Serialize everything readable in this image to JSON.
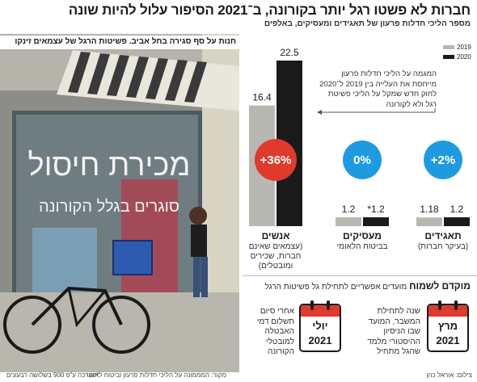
{
  "header": {
    "title": "חברות לא פשטו רגל יותר בקורונה, ב־2021 הסיפור עלול להיות שונה",
    "subtitle": "מספר הליכי חדלות פרעון של תאגידים ומעסיקים, באלפים"
  },
  "photo": {
    "caption": "חנות על סף סגירה בחל אביב. פשיטות הרגל של עצמאים זינקו",
    "sign_line1": "מכירת חיסול",
    "sign_line2": "סוגרים בגלל הקורונה"
  },
  "legend": [
    {
      "label": "2019",
      "color": "#b8b8b2"
    },
    {
      "label": "2020",
      "color": "#1a1a1a"
    }
  ],
  "annotation": "המגמה על הליכי חדלות פרעון מייחסת את העלייה בין 2019 ל־2020 לחוק חדש שמקל על הליכי פשיטת רגל ולא לקורונה",
  "chart_data": {
    "type": "bar",
    "title": "מספר הליכי חדלות פרעון של תאגידים ומעסיקים, באלפים",
    "categories": [
      "תאגידים",
      "מעסיקים",
      "אנשים"
    ],
    "category_descriptions": [
      "(בעיקר חברות)",
      "בביטוח הלאומי",
      "(עצמאים שאינם חברות, שכירים ומובטלים)"
    ],
    "series": [
      {
        "name": "2019",
        "values": [
          1.18,
          1.2,
          16.4
        ],
        "labels": [
          "1.18",
          "1.2",
          "16.4"
        ],
        "color": "#b8b8b2"
      },
      {
        "name": "2020",
        "values": [
          1.2,
          1.2,
          22.5
        ],
        "labels": [
          "1.2",
          "*1.2",
          "22.5"
        ],
        "color": "#1a1a1a"
      }
    ],
    "changes": [
      "+2%",
      "0%",
      "+36%"
    ],
    "change_colors": [
      "#1e9be0",
      "#1e9be0",
      "#e03a2c"
    ],
    "ylim": [
      0,
      22.5
    ]
  },
  "focus": {
    "title_bold": "מוקדם לשמוח",
    "title_rest": "מועדים אפשריים לתחילת גל פשיטות הרגל",
    "events": [
      {
        "month": "מרץ",
        "year": "2021",
        "description": "שנה לתחילת המשבר, המועד שבו הניסיון ההיסטורי מלמד שהגל מתחיל"
      },
      {
        "month": "יולי",
        "year": "2021",
        "description": "אחרי סיום תשלום דמי האבטלה למובטלי הקורונה"
      }
    ]
  },
  "footer": {
    "note": "*הערכה ע\"פ 900 בשלושה רבעונים",
    "source": "מקור: המממונה על הליכי חדלות פרעון וביטוח לאומי",
    "credit": "צילום: אוראל כהן"
  }
}
